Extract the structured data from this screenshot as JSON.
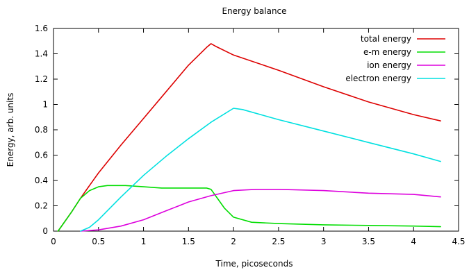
{
  "chart_data": {
    "type": "line",
    "title": "Energy balance",
    "xlabel": "Time, picoseconds",
    "ylabel": "Energy, arb. units",
    "xlim": [
      0,
      4.5
    ],
    "ylim": [
      0,
      1.6
    ],
    "xticks": [
      "0",
      "0.5",
      "1",
      "1.5",
      "2",
      "2.5",
      "3",
      "3.5",
      "4",
      "4.5"
    ],
    "yticks": [
      "0",
      "0.2",
      "0.4",
      "0.6",
      "0.8",
      "1",
      "1.2",
      "1.4",
      "1.6"
    ],
    "grid": false,
    "legend_position": "top-right",
    "series": [
      {
        "name": "total energy",
        "color": "#dd0000",
        "x": [
          0.05,
          0.1,
          0.2,
          0.3,
          0.4,
          0.5,
          0.75,
          1.0,
          1.25,
          1.5,
          1.7,
          1.75,
          1.8,
          2.0,
          2.5,
          3.0,
          3.5,
          4.0,
          4.3
        ],
        "y": [
          0.0,
          0.05,
          0.15,
          0.26,
          0.36,
          0.46,
          0.68,
          0.89,
          1.1,
          1.31,
          1.45,
          1.48,
          1.46,
          1.39,
          1.27,
          1.14,
          1.02,
          0.92,
          0.87
        ]
      },
      {
        "name": "e-m energy",
        "color": "#00dd00",
        "x": [
          0.05,
          0.1,
          0.2,
          0.3,
          0.4,
          0.5,
          0.6,
          0.7,
          0.8,
          1.0,
          1.2,
          1.4,
          1.6,
          1.7,
          1.75,
          1.8,
          1.9,
          2.0,
          2.2,
          2.5,
          3.0,
          3.5,
          4.0,
          4.3
        ],
        "y": [
          0.0,
          0.05,
          0.15,
          0.26,
          0.32,
          0.35,
          0.36,
          0.36,
          0.36,
          0.35,
          0.34,
          0.34,
          0.34,
          0.34,
          0.33,
          0.28,
          0.18,
          0.11,
          0.07,
          0.06,
          0.05,
          0.045,
          0.04,
          0.035
        ]
      },
      {
        "name": "ion energy",
        "color": "#dd00dd",
        "x": [
          0.3,
          0.5,
          0.75,
          1.0,
          1.25,
          1.5,
          1.75,
          2.0,
          2.25,
          2.5,
          3.0,
          3.5,
          4.0,
          4.3
        ],
        "y": [
          0.0,
          0.01,
          0.04,
          0.09,
          0.16,
          0.23,
          0.28,
          0.32,
          0.33,
          0.33,
          0.32,
          0.3,
          0.29,
          0.27
        ]
      },
      {
        "name": "electron energy",
        "color": "#00e0e0",
        "x": [
          0.3,
          0.4,
          0.5,
          0.75,
          1.0,
          1.25,
          1.5,
          1.75,
          2.0,
          2.1,
          2.5,
          3.0,
          3.5,
          4.0,
          4.3
        ],
        "y": [
          0.0,
          0.03,
          0.09,
          0.27,
          0.44,
          0.59,
          0.73,
          0.86,
          0.97,
          0.96,
          0.88,
          0.79,
          0.7,
          0.61,
          0.55
        ]
      }
    ]
  }
}
